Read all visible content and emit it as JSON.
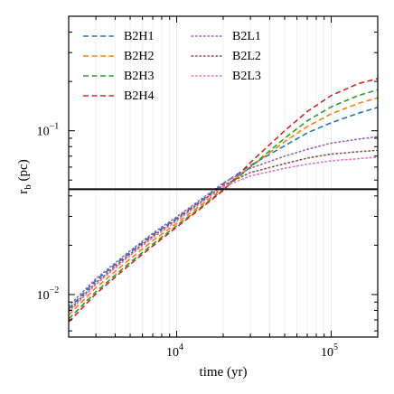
{
  "chart_data": {
    "type": "line",
    "xlabel": "time (yr)",
    "ylabel_main": "r",
    "ylabel_sub": "b",
    "ylabel_unit": " (pc)",
    "xscale": "log",
    "yscale": "log",
    "xlim": [
      2000,
      200000
    ],
    "ylim": [
      0.0055,
      0.5
    ],
    "x_ticks": [
      {
        "value": 10000,
        "base": "10",
        "exp": "4"
      },
      {
        "value": 100000,
        "base": "10",
        "exp": "5"
      }
    ],
    "y_ticks": [
      {
        "value": 0.01,
        "base": "10",
        "exp": "−2"
      },
      {
        "value": 0.1,
        "base": "10",
        "exp": "−1"
      }
    ],
    "grid": "vertical-minor",
    "legend_placement": "top-left",
    "reference_line": {
      "y": 0.044,
      "color": "#000000"
    },
    "series": [
      {
        "name": "B2H1",
        "color": "#1f77b4",
        "style": "dashed",
        "x": [
          2000,
          3000,
          5000,
          7000,
          10000,
          15000,
          20000,
          30000,
          50000,
          70000,
          100000,
          150000,
          200000
        ],
        "y": [
          0.0082,
          0.0122,
          0.0181,
          0.0232,
          0.0292,
          0.0385,
          0.0475,
          0.0615,
          0.081,
          0.097,
          0.112,
          0.128,
          0.139
        ]
      },
      {
        "name": "B2H2",
        "color": "#ff7f0e",
        "style": "dashed",
        "x": [
          2000,
          3000,
          5000,
          7000,
          10000,
          15000,
          20000,
          30000,
          50000,
          70000,
          100000,
          150000,
          200000
        ],
        "y": [
          0.0075,
          0.011,
          0.0165,
          0.0213,
          0.0272,
          0.0362,
          0.0447,
          0.06,
          0.086,
          0.106,
          0.127,
          0.147,
          0.159
        ]
      },
      {
        "name": "B2H3",
        "color": "#2ca02c",
        "style": "dashed",
        "x": [
          2000,
          3000,
          5000,
          7000,
          10000,
          15000,
          20000,
          30000,
          50000,
          70000,
          100000,
          150000,
          200000
        ],
        "y": [
          0.0071,
          0.0104,
          0.0157,
          0.0203,
          0.0263,
          0.0352,
          0.0437,
          0.06,
          0.09,
          0.115,
          0.14,
          0.164,
          0.178
        ]
      },
      {
        "name": "B2H4",
        "color": "#d62728",
        "style": "dashed",
        "x": [
          2000,
          3000,
          5000,
          7000,
          10000,
          15000,
          20000,
          30000,
          50000,
          70000,
          100000,
          150000,
          200000
        ],
        "y": [
          0.0068,
          0.0101,
          0.0153,
          0.0198,
          0.0258,
          0.0347,
          0.0432,
          0.064,
          0.1,
          0.131,
          0.164,
          0.194,
          0.208
        ]
      },
      {
        "name": "B2L1",
        "color": "#9467bd",
        "style": "dotted",
        "x": [
          2000,
          3000,
          5000,
          7000,
          10000,
          15000,
          20000,
          30000,
          50000,
          70000,
          100000,
          150000,
          200000
        ],
        "y": [
          0.0085,
          0.0125,
          0.0185,
          0.0237,
          0.0298,
          0.0393,
          0.048,
          0.059,
          0.07,
          0.077,
          0.084,
          0.089,
          0.092
        ]
      },
      {
        "name": "B2L2",
        "color": "#8c564b",
        "style": "dotted",
        "x": [
          2000,
          3000,
          5000,
          7000,
          10000,
          15000,
          20000,
          30000,
          50000,
          70000,
          100000,
          150000,
          200000
        ],
        "y": [
          0.008,
          0.0118,
          0.0177,
          0.0227,
          0.0287,
          0.038,
          0.0465,
          0.0555,
          0.063,
          0.068,
          0.072,
          0.0745,
          0.076
        ]
      },
      {
        "name": "B2L3",
        "color": "#e377c2",
        "style": "dotted",
        "x": [
          2000,
          3000,
          5000,
          7000,
          10000,
          15000,
          20000,
          30000,
          50000,
          70000,
          100000,
          150000,
          200000
        ],
        "y": [
          0.0078,
          0.0115,
          0.0173,
          0.0222,
          0.0281,
          0.0373,
          0.0455,
          0.053,
          0.059,
          0.0625,
          0.0655,
          0.0675,
          0.069
        ]
      }
    ]
  }
}
